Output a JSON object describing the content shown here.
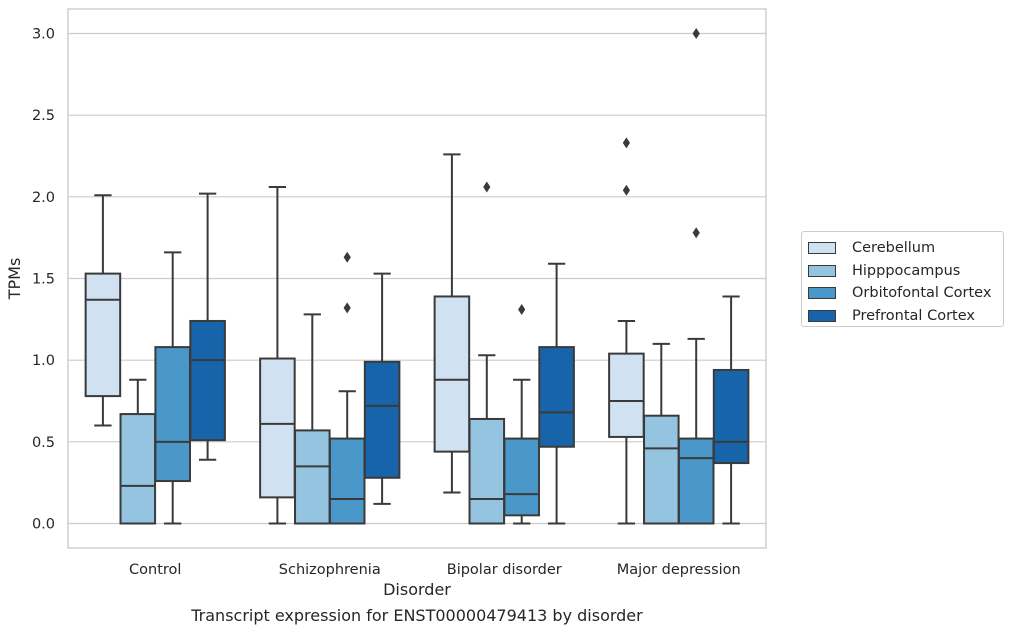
{
  "caption": "Transcript expression for ENST00000479413 by disorder",
  "colors": {
    "Cerebellum": "#d0e1f2",
    "Hipppocampus": "#94c4df",
    "Orbitofontal Cortex": "#4a98c9",
    "Prefrontal Cortex": "#1764ab",
    "grid": "#cccccc",
    "box_line": "#3a3a3a"
  },
  "chart_data": {
    "type": "boxplot",
    "xlabel": "Disorder",
    "ylabel": "TPMs",
    "ylim": [
      -0.15,
      3.15
    ],
    "yticks": [
      0.0,
      0.5,
      1.0,
      1.5,
      2.0,
      2.5,
      3.0
    ],
    "ytick_labels": [
      "0.0",
      "0.5",
      "1.0",
      "1.5",
      "2.0",
      "2.5",
      "3.0"
    ],
    "grid": "horizontal",
    "legend_position": "right",
    "categories": [
      "Control",
      "Schizophrenia",
      "Bipolar disorder",
      "Major depression"
    ],
    "series": [
      {
        "name": "Cerebellum",
        "boxes": [
          {
            "whislo": 0.6,
            "q1": 0.78,
            "med": 1.37,
            "q3": 1.53,
            "whishi": 2.01,
            "fliers": []
          },
          {
            "whislo": 0.0,
            "q1": 0.16,
            "med": 0.61,
            "q3": 1.01,
            "whishi": 2.06,
            "fliers": []
          },
          {
            "whislo": 0.19,
            "q1": 0.44,
            "med": 0.88,
            "q3": 1.39,
            "whishi": 2.26,
            "fliers": []
          },
          {
            "whislo": 0.0,
            "q1": 0.53,
            "med": 0.75,
            "q3": 1.04,
            "whishi": 1.24,
            "fliers": [
              2.04,
              2.33
            ]
          }
        ]
      },
      {
        "name": "Hipppocampus",
        "boxes": [
          {
            "whislo": 0.0,
            "q1": 0.0,
            "med": 0.23,
            "q3": 0.67,
            "whishi": 0.88,
            "fliers": []
          },
          {
            "whislo": 0.0,
            "q1": 0.0,
            "med": 0.35,
            "q3": 0.57,
            "whishi": 1.28,
            "fliers": []
          },
          {
            "whislo": 0.0,
            "q1": 0.0,
            "med": 0.15,
            "q3": 0.64,
            "whishi": 1.03,
            "fliers": [
              2.06
            ]
          },
          {
            "whislo": 0.0,
            "q1": 0.0,
            "med": 0.46,
            "q3": 0.66,
            "whishi": 1.1,
            "fliers": []
          }
        ]
      },
      {
        "name": "Orbitofontal Cortex",
        "boxes": [
          {
            "whislo": 0.0,
            "q1": 0.26,
            "med": 0.5,
            "q3": 1.08,
            "whishi": 1.66,
            "fliers": []
          },
          {
            "whislo": 0.0,
            "q1": 0.0,
            "med": 0.15,
            "q3": 0.52,
            "whishi": 0.81,
            "fliers": [
              1.32,
              1.63
            ]
          },
          {
            "whislo": 0.0,
            "q1": 0.05,
            "med": 0.18,
            "q3": 0.52,
            "whishi": 0.88,
            "fliers": [
              1.31
            ]
          },
          {
            "whislo": 0.0,
            "q1": 0.0,
            "med": 0.4,
            "q3": 0.52,
            "whishi": 1.13,
            "fliers": [
              1.78,
              3.0
            ]
          }
        ]
      },
      {
        "name": "Prefrontal Cortex",
        "boxes": [
          {
            "whislo": 0.39,
            "q1": 0.51,
            "med": 1.0,
            "q3": 1.24,
            "whishi": 2.02,
            "fliers": []
          },
          {
            "whislo": 0.12,
            "q1": 0.28,
            "med": 0.72,
            "q3": 0.99,
            "whishi": 1.53,
            "fliers": []
          },
          {
            "whislo": 0.0,
            "q1": 0.47,
            "med": 0.68,
            "q3": 1.08,
            "whishi": 1.59,
            "fliers": []
          },
          {
            "whislo": 0.0,
            "q1": 0.37,
            "med": 0.5,
            "q3": 0.94,
            "whishi": 1.39,
            "fliers": []
          }
        ]
      }
    ]
  }
}
